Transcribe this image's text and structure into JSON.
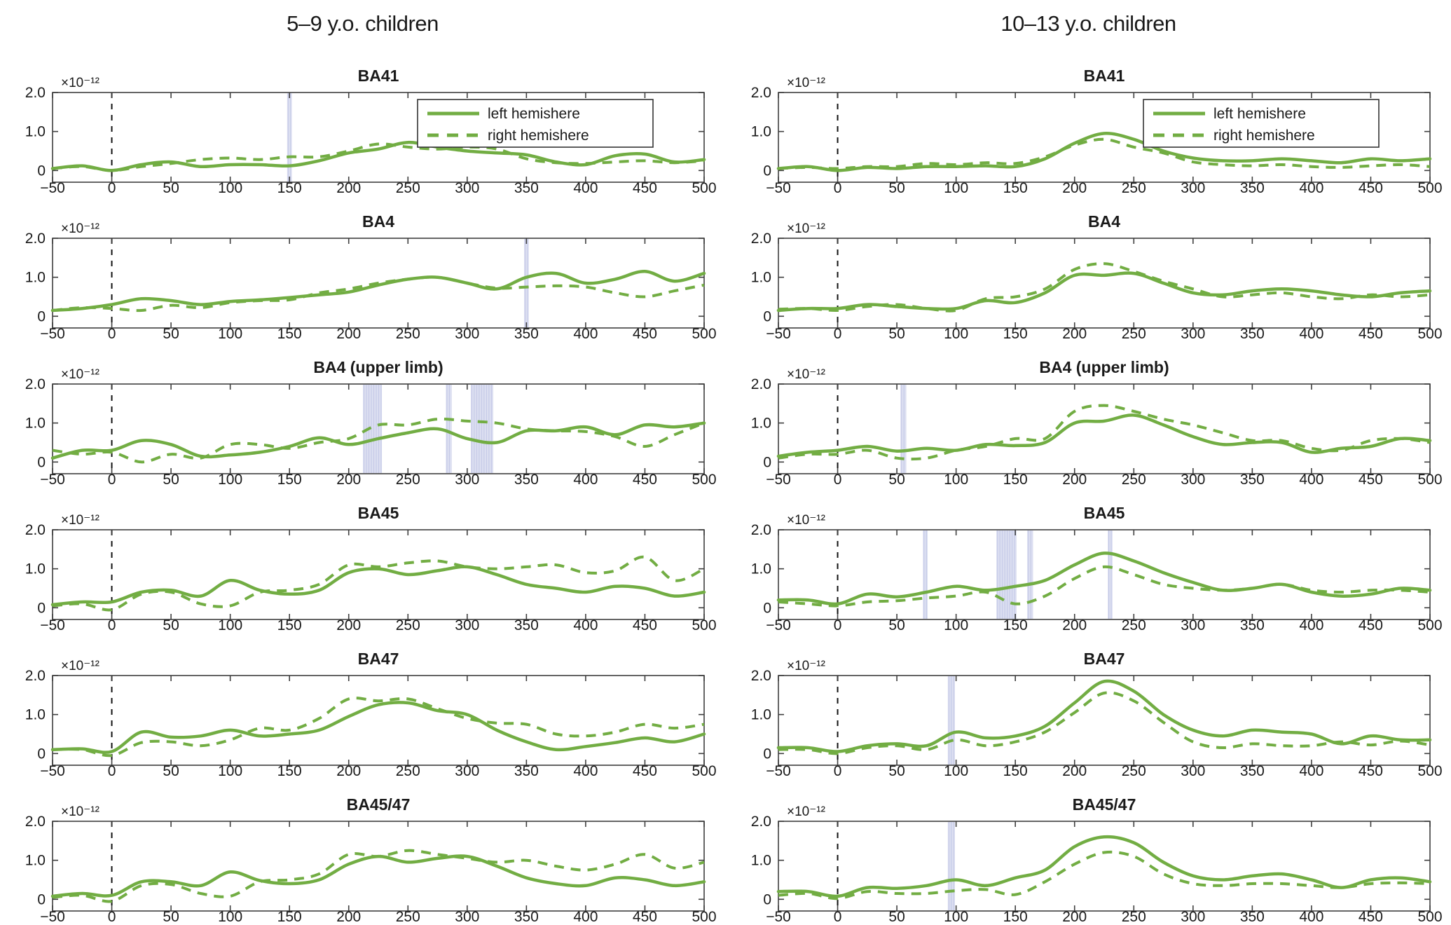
{
  "legend": {
    "entries": [
      {
        "label": "left hemishere",
        "style": "solid"
      },
      {
        "label": "right hemishere",
        "style": "dashed"
      }
    ]
  },
  "colors": {
    "line_green": "#72ad43",
    "band_fill": "#dcdff1",
    "band_stripe": "#c3c8e6",
    "axis": "#3f3f3f",
    "zero_line": "#111111",
    "text": "#1a1a1a"
  },
  "chart_data": {
    "type": "line",
    "x_ms": [
      -50,
      -25,
      0,
      25,
      50,
      75,
      100,
      125,
      150,
      175,
      200,
      225,
      250,
      275,
      300,
      325,
      350,
      375,
      400,
      425,
      450,
      475,
      500
    ],
    "xlim": [
      -50,
      500
    ],
    "ylim": [
      -0.3,
      2.0
    ],
    "y_scale_factor": 1e-12,
    "y_offset_label": "×10⁻¹²",
    "xtick_labels": [
      "−50",
      "0",
      "50",
      "100",
      "150",
      "200",
      "250",
      "300",
      "350",
      "400",
      "450",
      "500"
    ],
    "yticks": {
      "values": [
        0,
        1,
        2
      ],
      "labels": [
        "0",
        "1.0",
        "2.0"
      ]
    },
    "stimulus_onset_ms": 0,
    "columns": [
      {
        "title": "5–9 y.o. children",
        "plots": [
          {
            "title": "BA41",
            "significance_bands_ms": [
              [
                148,
                152
              ]
            ],
            "series": {
              "left_hemisphere": [
                0.05,
                0.12,
                0.0,
                0.15,
                0.22,
                0.1,
                0.15,
                0.15,
                0.12,
                0.25,
                0.45,
                0.55,
                0.72,
                0.6,
                0.5,
                0.45,
                0.4,
                0.22,
                0.15,
                0.38,
                0.42,
                0.22,
                0.28
              ],
              "right_hemisphere": [
                0.05,
                0.1,
                0.0,
                0.1,
                0.18,
                0.28,
                0.32,
                0.28,
                0.35,
                0.35,
                0.5,
                0.68,
                0.6,
                0.55,
                0.6,
                0.55,
                0.3,
                0.2,
                0.18,
                0.22,
                0.25,
                0.2,
                0.25
              ]
            }
          },
          {
            "title": "BA4",
            "significance_bands_ms": [
              [
                348,
                352
              ]
            ],
            "series": {
              "left_hemisphere": [
                0.15,
                0.2,
                0.3,
                0.45,
                0.4,
                0.3,
                0.38,
                0.42,
                0.48,
                0.55,
                0.62,
                0.8,
                0.95,
                1.0,
                0.85,
                0.7,
                1.0,
                1.1,
                0.85,
                0.95,
                1.15,
                0.9,
                1.1
              ],
              "right_hemisphere": [
                0.15,
                0.22,
                0.2,
                0.15,
                0.28,
                0.22,
                0.35,
                0.4,
                0.42,
                0.6,
                0.7,
                0.85,
                0.95,
                1.0,
                0.85,
                0.72,
                0.75,
                0.78,
                0.75,
                0.6,
                0.5,
                0.65,
                0.8
              ]
            }
          },
          {
            "title": "BA4 (upper limb)",
            "significance_bands_ms": [
              [
                212,
                228
              ],
              [
                282,
                287
              ],
              [
                303,
                322
              ]
            ],
            "series": {
              "left_hemisphere": [
                0.1,
                0.3,
                0.3,
                0.55,
                0.45,
                0.15,
                0.18,
                0.25,
                0.4,
                0.62,
                0.45,
                0.6,
                0.75,
                0.85,
                0.6,
                0.5,
                0.8,
                0.8,
                0.9,
                0.7,
                0.95,
                0.9,
                1.0
              ],
              "right_hemisphere": [
                0.3,
                0.2,
                0.25,
                0.0,
                0.2,
                0.1,
                0.45,
                0.45,
                0.35,
                0.5,
                0.6,
                0.95,
                0.95,
                1.1,
                1.05,
                1.0,
                0.85,
                0.8,
                0.78,
                0.65,
                0.4,
                0.7,
                1.0
              ]
            }
          },
          {
            "title": "BA45",
            "significance_bands_ms": [],
            "series": {
              "left_hemisphere": [
                0.08,
                0.15,
                0.15,
                0.4,
                0.45,
                0.3,
                0.7,
                0.45,
                0.35,
                0.45,
                0.9,
                1.0,
                0.85,
                0.95,
                1.05,
                0.85,
                0.6,
                0.5,
                0.4,
                0.55,
                0.5,
                0.3,
                0.4
              ],
              "right_hemisphere": [
                0.05,
                0.1,
                -0.05,
                0.35,
                0.4,
                0.1,
                0.05,
                0.4,
                0.45,
                0.6,
                1.1,
                1.05,
                1.15,
                1.2,
                1.05,
                1.0,
                1.05,
                1.1,
                0.9,
                0.95,
                1.3,
                0.7,
                1.0
              ]
            }
          },
          {
            "title": "BA47",
            "significance_bands_ms": [],
            "series": {
              "left_hemisphere": [
                0.1,
                0.12,
                0.05,
                0.55,
                0.42,
                0.45,
                0.6,
                0.45,
                0.5,
                0.6,
                0.95,
                1.25,
                1.3,
                1.1,
                1.0,
                0.6,
                0.3,
                0.1,
                0.18,
                0.28,
                0.4,
                0.3,
                0.5
              ],
              "right_hemisphere": [
                0.1,
                0.1,
                -0.05,
                0.28,
                0.3,
                0.2,
                0.35,
                0.65,
                0.6,
                0.9,
                1.4,
                1.35,
                1.4,
                1.15,
                0.9,
                0.78,
                0.75,
                0.5,
                0.45,
                0.55,
                0.75,
                0.65,
                0.75
              ]
            }
          },
          {
            "title": "BA45/47",
            "significance_bands_ms": [],
            "series": {
              "left_hemisphere": [
                0.08,
                0.15,
                0.1,
                0.45,
                0.45,
                0.35,
                0.7,
                0.48,
                0.4,
                0.5,
                0.9,
                1.1,
                0.95,
                1.05,
                1.1,
                0.85,
                0.55,
                0.4,
                0.35,
                0.55,
                0.5,
                0.35,
                0.45
              ],
              "right_hemisphere": [
                0.05,
                0.1,
                -0.05,
                0.35,
                0.38,
                0.15,
                0.08,
                0.45,
                0.5,
                0.65,
                1.15,
                1.1,
                1.25,
                1.15,
                1.05,
                0.95,
                1.0,
                0.85,
                0.75,
                0.9,
                1.15,
                0.8,
                0.95
              ]
            }
          }
        ]
      },
      {
        "title": "10–13 y.o. children",
        "plots": [
          {
            "title": "BA41",
            "significance_bands_ms": [],
            "series": {
              "left_hemisphere": [
                0.05,
                0.1,
                0.0,
                0.08,
                0.05,
                0.1,
                0.1,
                0.12,
                0.1,
                0.3,
                0.7,
                0.95,
                0.8,
                0.5,
                0.32,
                0.25,
                0.25,
                0.3,
                0.25,
                0.2,
                0.3,
                0.25,
                0.3
              ],
              "right_hemisphere": [
                0.05,
                0.08,
                0.05,
                0.1,
                0.1,
                0.18,
                0.15,
                0.2,
                0.18,
                0.35,
                0.65,
                0.8,
                0.6,
                0.45,
                0.22,
                0.15,
                0.12,
                0.15,
                0.1,
                0.08,
                0.12,
                0.15,
                0.1
              ]
            }
          },
          {
            "title": "BA4",
            "significance_bands_ms": [],
            "series": {
              "left_hemisphere": [
                0.15,
                0.2,
                0.2,
                0.3,
                0.25,
                0.2,
                0.2,
                0.4,
                0.35,
                0.6,
                1.05,
                1.05,
                1.1,
                0.85,
                0.6,
                0.55,
                0.65,
                0.7,
                0.65,
                0.55,
                0.5,
                0.6,
                0.65
              ],
              "right_hemisphere": [
                0.18,
                0.2,
                0.15,
                0.25,
                0.3,
                0.2,
                0.15,
                0.45,
                0.5,
                0.7,
                1.2,
                1.35,
                1.15,
                0.9,
                0.7,
                0.5,
                0.55,
                0.6,
                0.5,
                0.45,
                0.55,
                0.5,
                0.55
              ]
            }
          },
          {
            "title": "BA4 (upper limb)",
            "significance_bands_ms": [
              [
                53,
                58
              ]
            ],
            "series": {
              "left_hemisphere": [
                0.15,
                0.25,
                0.3,
                0.4,
                0.28,
                0.35,
                0.3,
                0.45,
                0.42,
                0.5,
                1.0,
                1.05,
                1.2,
                0.95,
                0.65,
                0.45,
                0.5,
                0.5,
                0.25,
                0.35,
                0.4,
                0.6,
                0.55
              ],
              "right_hemisphere": [
                0.1,
                0.2,
                0.2,
                0.3,
                0.1,
                0.1,
                0.3,
                0.4,
                0.6,
                0.6,
                1.3,
                1.45,
                1.3,
                1.1,
                0.95,
                0.75,
                0.55,
                0.55,
                0.35,
                0.3,
                0.55,
                0.6,
                0.5
              ]
            }
          },
          {
            "title": "BA45",
            "significance_bands_ms": [
              [
                72,
                76
              ],
              [
                134,
                151
              ],
              [
                160,
                165
              ],
              [
                228,
                232
              ]
            ],
            "series": {
              "left_hemisphere": [
                0.2,
                0.2,
                0.1,
                0.35,
                0.28,
                0.4,
                0.55,
                0.45,
                0.55,
                0.7,
                1.1,
                1.4,
                1.2,
                0.9,
                0.65,
                0.45,
                0.5,
                0.6,
                0.4,
                0.3,
                0.35,
                0.5,
                0.45
              ],
              "right_hemisphere": [
                0.15,
                0.1,
                0.05,
                0.15,
                0.18,
                0.25,
                0.3,
                0.4,
                0.1,
                0.3,
                0.75,
                1.05,
                0.85,
                0.6,
                0.5,
                0.45,
                0.5,
                0.6,
                0.45,
                0.4,
                0.45,
                0.45,
                0.4
              ]
            }
          },
          {
            "title": "BA47",
            "significance_bands_ms": [
              [
                93,
                99
              ]
            ],
            "series": {
              "left_hemisphere": [
                0.15,
                0.15,
                0.05,
                0.2,
                0.25,
                0.2,
                0.55,
                0.4,
                0.45,
                0.7,
                1.3,
                1.85,
                1.6,
                1.0,
                0.6,
                0.45,
                0.6,
                0.55,
                0.5,
                0.25,
                0.45,
                0.35,
                0.35
              ],
              "right_hemisphere": [
                0.1,
                0.1,
                0.0,
                0.15,
                0.2,
                0.1,
                0.35,
                0.2,
                0.3,
                0.55,
                1.05,
                1.55,
                1.35,
                0.8,
                0.3,
                0.15,
                0.25,
                0.2,
                0.2,
                0.3,
                0.22,
                0.32,
                0.22
              ]
            }
          },
          {
            "title": "BA45/47",
            "significance_bands_ms": [
              [
                93,
                99
              ]
            ],
            "series": {
              "left_hemisphere": [
                0.2,
                0.2,
                0.08,
                0.3,
                0.28,
                0.35,
                0.5,
                0.35,
                0.55,
                0.75,
                1.35,
                1.6,
                1.45,
                0.95,
                0.6,
                0.5,
                0.6,
                0.65,
                0.5,
                0.3,
                0.5,
                0.55,
                0.45
              ],
              "right_hemisphere": [
                0.1,
                0.15,
                0.02,
                0.2,
                0.15,
                0.15,
                0.22,
                0.25,
                0.12,
                0.45,
                0.9,
                1.2,
                1.1,
                0.65,
                0.4,
                0.35,
                0.4,
                0.4,
                0.35,
                0.3,
                0.4,
                0.42,
                0.4
              ]
            }
          }
        ]
      }
    ]
  }
}
